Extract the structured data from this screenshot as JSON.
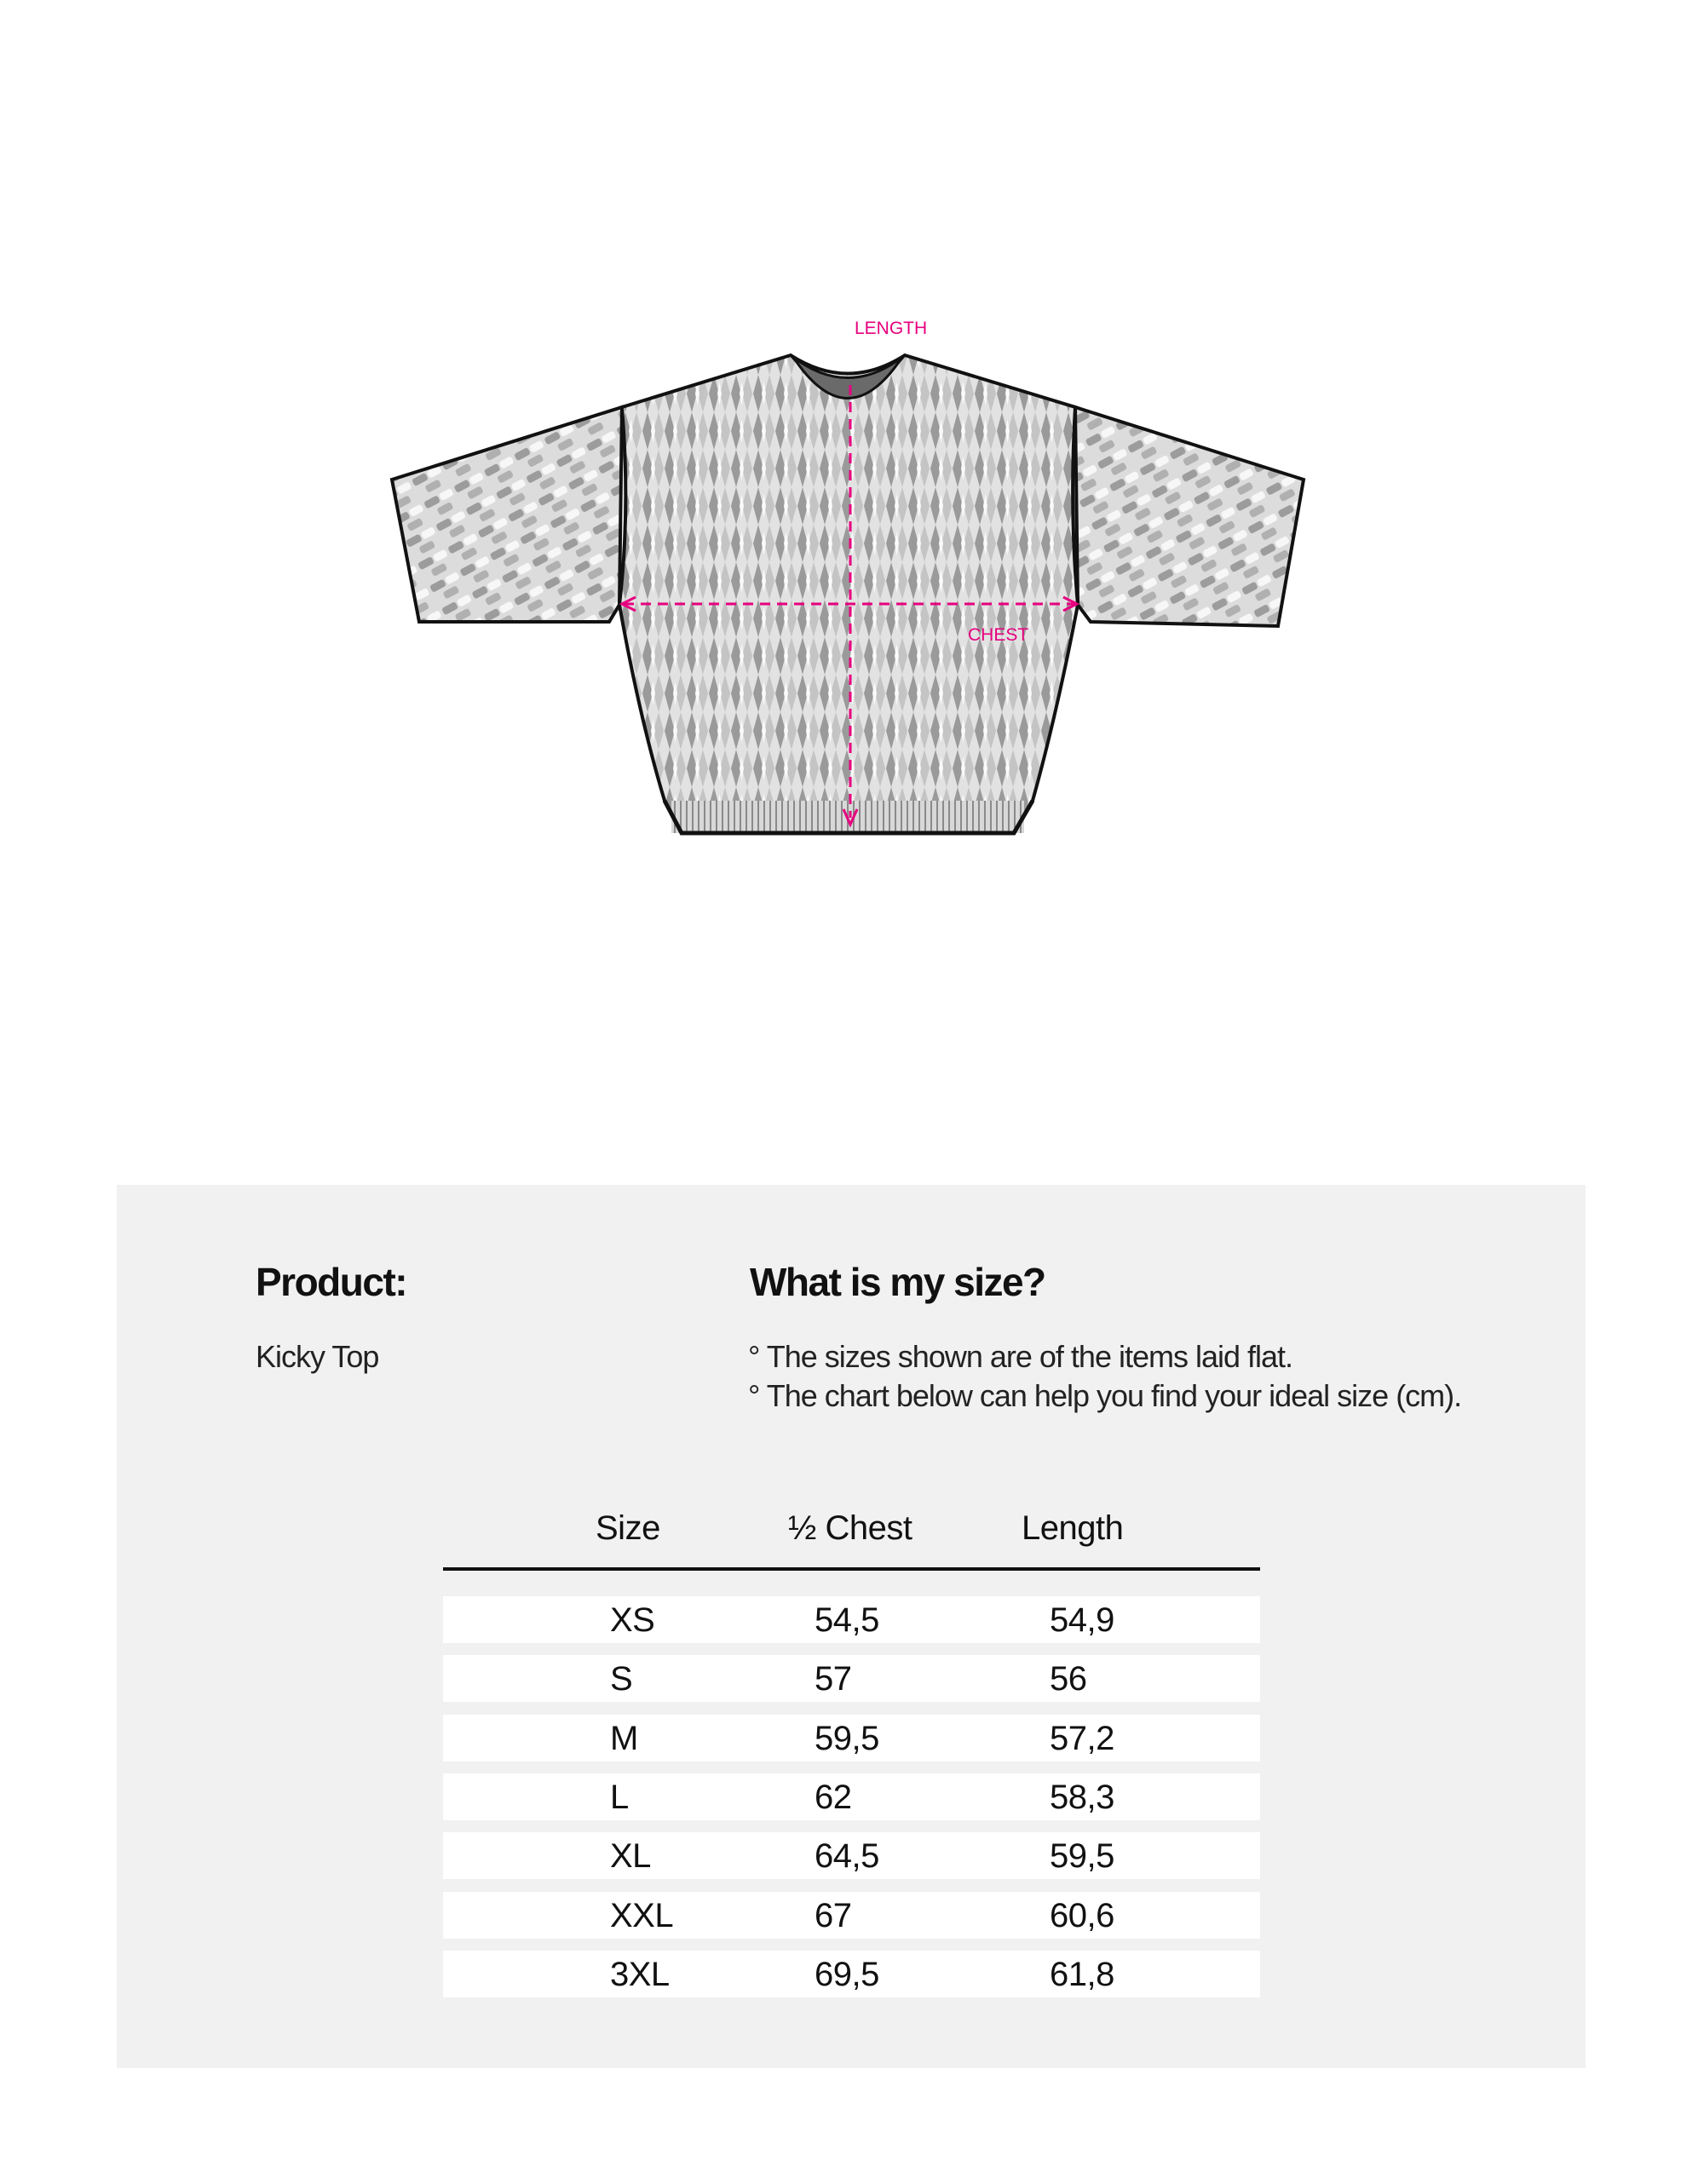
{
  "diagram": {
    "length_label": "LENGTH",
    "chest_label": "CHEST",
    "accent_color": "#e6007e"
  },
  "product": {
    "heading": "Product:",
    "name": "Kicky Top"
  },
  "size_info": {
    "heading": "What is my size?",
    "notes": [
      "° The sizes shown are of the items laid flat.",
      "° The chart below can help you find your ideal size (cm)."
    ]
  },
  "size_table": {
    "headers": [
      "Size",
      "½ Chest",
      "Length"
    ],
    "rows": [
      [
        "XS",
        "54,5",
        "54,9"
      ],
      [
        "S",
        "57",
        "56"
      ],
      [
        "M",
        "59,5",
        "57,2"
      ],
      [
        "L",
        "62",
        "58,3"
      ],
      [
        "XL",
        "64,5",
        "59,5"
      ],
      [
        "XXL",
        "67",
        "60,6"
      ],
      [
        "3XL",
        "69,5",
        "61,8"
      ]
    ]
  }
}
